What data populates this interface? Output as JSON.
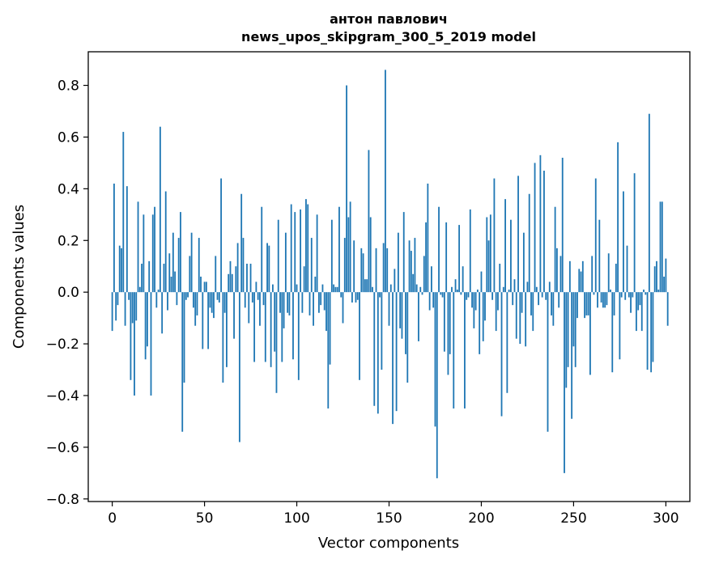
{
  "chart_data": {
    "type": "bar",
    "title": "антон павлович",
    "subtitle": "news_upos_skipgram_300_5_2019 model",
    "xlabel": "Vector components",
    "ylabel": "Components values",
    "xlim": [
      -13,
      313
    ],
    "ylim": [
      -0.81,
      0.93
    ],
    "xticks": [
      0,
      50,
      100,
      150,
      200,
      250,
      300
    ],
    "xtick_labels": [
      "0",
      "50",
      "100",
      "150",
      "200",
      "250",
      "300"
    ],
    "yticks": [
      -0.8,
      -0.6,
      -0.4,
      -0.2,
      0.0,
      0.2,
      0.4,
      0.6,
      0.8
    ],
    "ytick_labels": [
      "−0.8",
      "−0.6",
      "−0.4",
      "−0.2",
      "0.0",
      "0.2",
      "0.4",
      "0.6",
      "0.8"
    ],
    "bar_color": "#1f77b4",
    "series": [
      {
        "name": "components",
        "values": [
          -0.15,
          0.42,
          -0.11,
          -0.05,
          0.18,
          0.17,
          0.62,
          -0.13,
          0.41,
          -0.03,
          -0.34,
          -0.12,
          -0.4,
          -0.11,
          0.35,
          0.02,
          0.11,
          0.3,
          -0.26,
          -0.21,
          0.12,
          -0.4,
          0.3,
          0.33,
          -0.06,
          0.01,
          0.64,
          -0.16,
          0.11,
          0.39,
          -0.07,
          0.15,
          0.06,
          0.23,
          0.08,
          -0.05,
          0.21,
          0.31,
          -0.54,
          -0.35,
          -0.03,
          -0.02,
          0.14,
          0.23,
          -0.06,
          -0.13,
          -0.09,
          0.21,
          0.06,
          -0.22,
          0.04,
          0.04,
          -0.22,
          -0.06,
          -0.08,
          -0.1,
          0.14,
          -0.03,
          -0.04,
          0.44,
          -0.35,
          -0.08,
          -0.29,
          0.07,
          0.12,
          0.07,
          -0.18,
          0.1,
          0.19,
          -0.58,
          0.38,
          0.21,
          -0.06,
          0.11,
          -0.12,
          0.11,
          -0.04,
          -0.27,
          0.04,
          -0.03,
          -0.13,
          0.33,
          -0.05,
          -0.27,
          0.19,
          0.18,
          -0.29,
          0.03,
          -0.23,
          -0.39,
          0.28,
          -0.08,
          -0.27,
          -0.14,
          0.23,
          -0.08,
          -0.09,
          0.34,
          -0.26,
          0.31,
          0.03,
          -0.34,
          0.32,
          -0.08,
          0.1,
          0.36,
          0.34,
          -0.09,
          0.21,
          -0.13,
          0.06,
          0.3,
          -0.08,
          -0.05,
          0.03,
          -0.07,
          -0.15,
          -0.45,
          -0.28,
          0.28,
          0.03,
          0.02,
          0.02,
          0.33,
          -0.02,
          -0.12,
          0.21,
          0.8,
          0.29,
          0.35,
          -0.04,
          0.2,
          -0.04,
          -0.03,
          -0.34,
          0.17,
          0.15,
          0.05,
          0.05,
          0.55,
          0.29,
          0.02,
          -0.44,
          0.17,
          -0.47,
          -0.02,
          -0.3,
          0.19,
          0.86,
          0.17,
          -0.13,
          0.03,
          -0.51,
          0.09,
          -0.46,
          0.23,
          -0.14,
          -0.18,
          0.31,
          -0.24,
          -0.35,
          0.2,
          0.16,
          0.07,
          0.21,
          0.03,
          -0.19,
          0.02,
          -0.01,
          0.14,
          0.27,
          0.42,
          -0.07,
          0.1,
          -0.06,
          -0.52,
          -0.72,
          0.33,
          -0.01,
          -0.02,
          -0.23,
          0.27,
          -0.32,
          -0.24,
          0.02,
          -0.45,
          0.05,
          0.01,
          0.26,
          -0.01,
          0.1,
          -0.45,
          -0.03,
          -0.02,
          0.32,
          -0.06,
          -0.14,
          -0.07,
          0.01,
          -0.24,
          0.08,
          -0.19,
          -0.11,
          0.29,
          0.2,
          0.3,
          -0.03,
          0.44,
          -0.15,
          -0.07,
          0.11,
          -0.48,
          0.02,
          0.36,
          -0.39,
          0.01,
          0.28,
          -0.05,
          0.05,
          -0.18,
          0.45,
          -0.2,
          -0.08,
          0.23,
          -0.21,
          0.04,
          0.38,
          -0.09,
          -0.15,
          0.5,
          0.02,
          -0.05,
          0.53,
          -0.02,
          0.47,
          -0.03,
          -0.54,
          0.04,
          -0.09,
          -0.13,
          0.33,
          0.17,
          -0.06,
          0.14,
          0.52,
          -0.7,
          -0.37,
          -0.29,
          0.12,
          -0.49,
          -0.21,
          -0.29,
          -0.1,
          0.09,
          0.08,
          0.12,
          -0.1,
          -0.09,
          -0.09,
          -0.32,
          0.14,
          -0.01,
          0.44,
          -0.06,
          0.28,
          -0.04,
          -0.06,
          -0.06,
          -0.05,
          0.15,
          0.01,
          -0.31,
          -0.09,
          0.11,
          0.58,
          -0.26,
          -0.02,
          0.39,
          -0.03,
          0.18,
          -0.02,
          -0.08,
          -0.02,
          0.46,
          -0.15,
          -0.07,
          -0.05,
          -0.15,
          0.01,
          -0.01,
          -0.3,
          0.69,
          -0.31,
          -0.27,
          0.1,
          0.12,
          0.01,
          0.35,
          0.35,
          0.06,
          0.13,
          -0.13
        ]
      }
    ]
  }
}
